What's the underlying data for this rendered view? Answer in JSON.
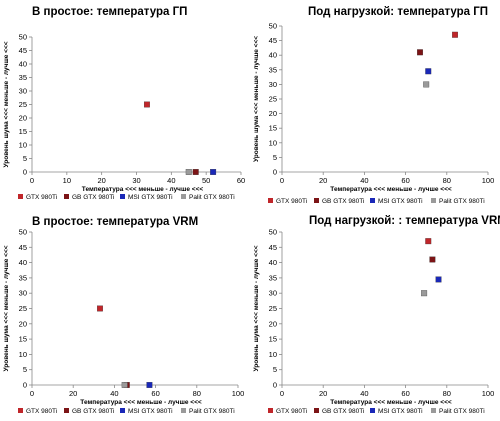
{
  "legend_colors": {
    "GTX 980Ti": "#c0262a",
    "GB GTX 980Ti": "#7c1416",
    "MSI GTX 980Ti": "#1a28b8",
    "Palit GTX 980Ti": "#9a9a9a"
  },
  "chart_data": [
    {
      "type": "scatter",
      "title": "В простое: температура ГП",
      "xlabel": "Температура <<< меньше - лучше <<<",
      "ylabel": "Уровень шума <<< меньше - лучше <<<",
      "xlim": [
        0,
        60
      ],
      "ylim": [
        0,
        50
      ],
      "xticks": [
        0,
        10,
        20,
        30,
        40,
        50,
        60
      ],
      "yticks": [
        0,
        5,
        10,
        15,
        20,
        25,
        30,
        35,
        40,
        45,
        50
      ],
      "legend_position": "bottom",
      "series": [
        {
          "name": "GTX 980Ti",
          "x": [
            33
          ],
          "y": [
            25
          ]
        },
        {
          "name": "GB GTX 980Ti",
          "x": [
            47
          ],
          "y": [
            0
          ]
        },
        {
          "name": "MSI GTX 980Ti",
          "x": [
            52
          ],
          "y": [
            0
          ]
        },
        {
          "name": "Palit GTX 980Ti",
          "x": [
            45
          ],
          "y": [
            0
          ]
        }
      ]
    },
    {
      "type": "scatter",
      "title": "Под нагрузкой: температура ГП",
      "xlabel": "Температура <<< меньше - лучше <<<",
      "ylabel": "Уровень шума <<< меньше - лучше <<<",
      "xlim": [
        0,
        100
      ],
      "ylim": [
        0,
        50
      ],
      "xticks": [
        0,
        20,
        40,
        60,
        80,
        100
      ],
      "yticks": [
        0,
        5,
        10,
        15,
        20,
        25,
        30,
        35,
        40,
        45,
        50
      ],
      "legend_position": "bottom",
      "series": [
        {
          "name": "GTX 980Ti",
          "x": [
            84
          ],
          "y": [
            47
          ]
        },
        {
          "name": "GB GTX 980Ti",
          "x": [
            67
          ],
          "y": [
            41
          ]
        },
        {
          "name": "MSI GTX 980Ti",
          "x": [
            71
          ],
          "y": [
            34.5
          ]
        },
        {
          "name": "Palit GTX 980Ti",
          "x": [
            70
          ],
          "y": [
            30
          ]
        }
      ]
    },
    {
      "type": "scatter",
      "title": "В простое: температура VRM",
      "xlabel": "Температура <<< меньше - лучше <<<",
      "ylabel": "Уровень шума <<< меньше - лучше <<<",
      "xlim": [
        0,
        100
      ],
      "ylim": [
        0,
        50
      ],
      "xticks": [
        0,
        20,
        40,
        60,
        80,
        100
      ],
      "yticks": [
        0,
        5,
        10,
        15,
        20,
        25,
        30,
        35,
        40,
        45,
        50
      ],
      "legend_position": "bottom",
      "series": [
        {
          "name": "GTX 980Ti",
          "x": [
            33
          ],
          "y": [
            25
          ]
        },
        {
          "name": "GB GTX 980Ti",
          "x": [
            46
          ],
          "y": [
            0
          ]
        },
        {
          "name": "MSI GTX 980Ti",
          "x": [
            57
          ],
          "y": [
            0
          ]
        },
        {
          "name": "Palit GTX 980Ti",
          "x": [
            45
          ],
          "y": [
            0
          ]
        }
      ]
    },
    {
      "type": "scatter",
      "title": "Под нагрузкой: : температура VRM",
      "xlabel": "Температура <<< меньше - лучше <<<",
      "ylabel": "Уровень шума <<< меньше - лучше <<<",
      "xlim": [
        0,
        100
      ],
      "ylim": [
        0,
        50
      ],
      "xticks": [
        0,
        20,
        40,
        60,
        80,
        100
      ],
      "yticks": [
        0,
        5,
        10,
        15,
        20,
        25,
        30,
        35,
        40,
        45,
        50
      ],
      "legend_position": "bottom",
      "series": [
        {
          "name": "GTX 980Ti",
          "x": [
            71
          ],
          "y": [
            47
          ]
        },
        {
          "name": "GB GTX 980Ti",
          "x": [
            73
          ],
          "y": [
            41
          ]
        },
        {
          "name": "MSI GTX 980Ti",
          "x": [
            76
          ],
          "y": [
            34.5
          ]
        },
        {
          "name": "Palit GTX 980Ti",
          "x": [
            69
          ],
          "y": [
            30
          ]
        }
      ]
    }
  ]
}
